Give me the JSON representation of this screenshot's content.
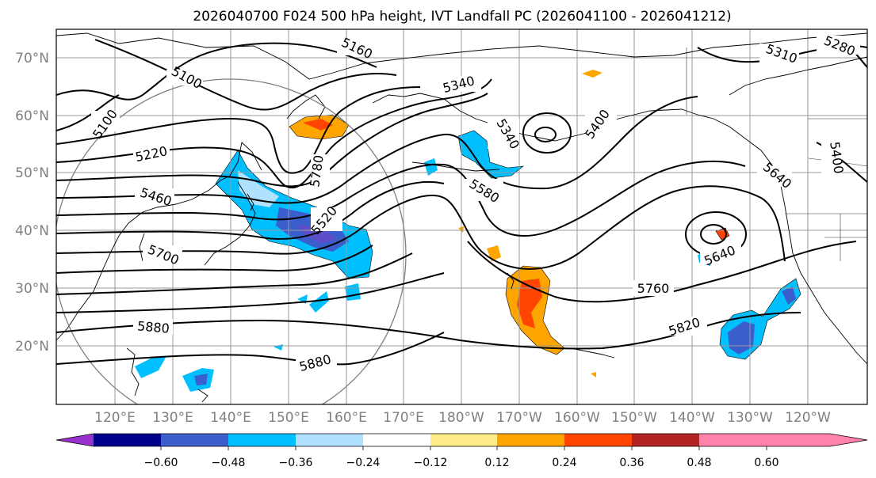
{
  "title": "2026040700 F024 500 hPa height, IVT Landfall PC (2026041100 - 2026041212)",
  "lat_labels": [
    "70°N",
    "60°N",
    "50°N",
    "40°N",
    "30°N",
    "20°N"
  ],
  "lon_labels": [
    "120°E",
    "130°E",
    "140°E",
    "150°E",
    "160°E",
    "170°E",
    "180°W",
    "170°W",
    "160°W",
    "150°W",
    "140°W",
    "130°W",
    "120°W"
  ],
  "colorbar": {
    "colors": [
      "#9932cc",
      "#00008b",
      "#3a5fcd",
      "#00bfff",
      "#b0e2ff",
      "#ffffff",
      "#ffec8b",
      "#ffa500",
      "#ff4500",
      "#b22222",
      "#ff82ab"
    ],
    "tick_labels": [
      "−0.60",
      "−0.48",
      "−0.36",
      "−0.24",
      "−0.12",
      "0.12",
      "0.24",
      "0.36",
      "0.48",
      "0.60"
    ]
  },
  "contour_labels": {
    "c5160": "5160",
    "c5100a": "5100",
    "c5100b": "5100",
    "c5220": "5220",
    "c5460": "5460",
    "c5700": "5700",
    "c5880a": "5880",
    "c5880b": "5880",
    "c5340a": "5340",
    "c5340b": "5340",
    "c5400a": "5400",
    "c5580": "5580",
    "c5520": "5520",
    "c5760": "5760",
    "c5820": "5820",
    "c5640a": "5640",
    "c5640b": "5640",
    "c5310": "5310",
    "c5400b": "5400",
    "c5280": "5280",
    "c5780": "5780"
  }
}
